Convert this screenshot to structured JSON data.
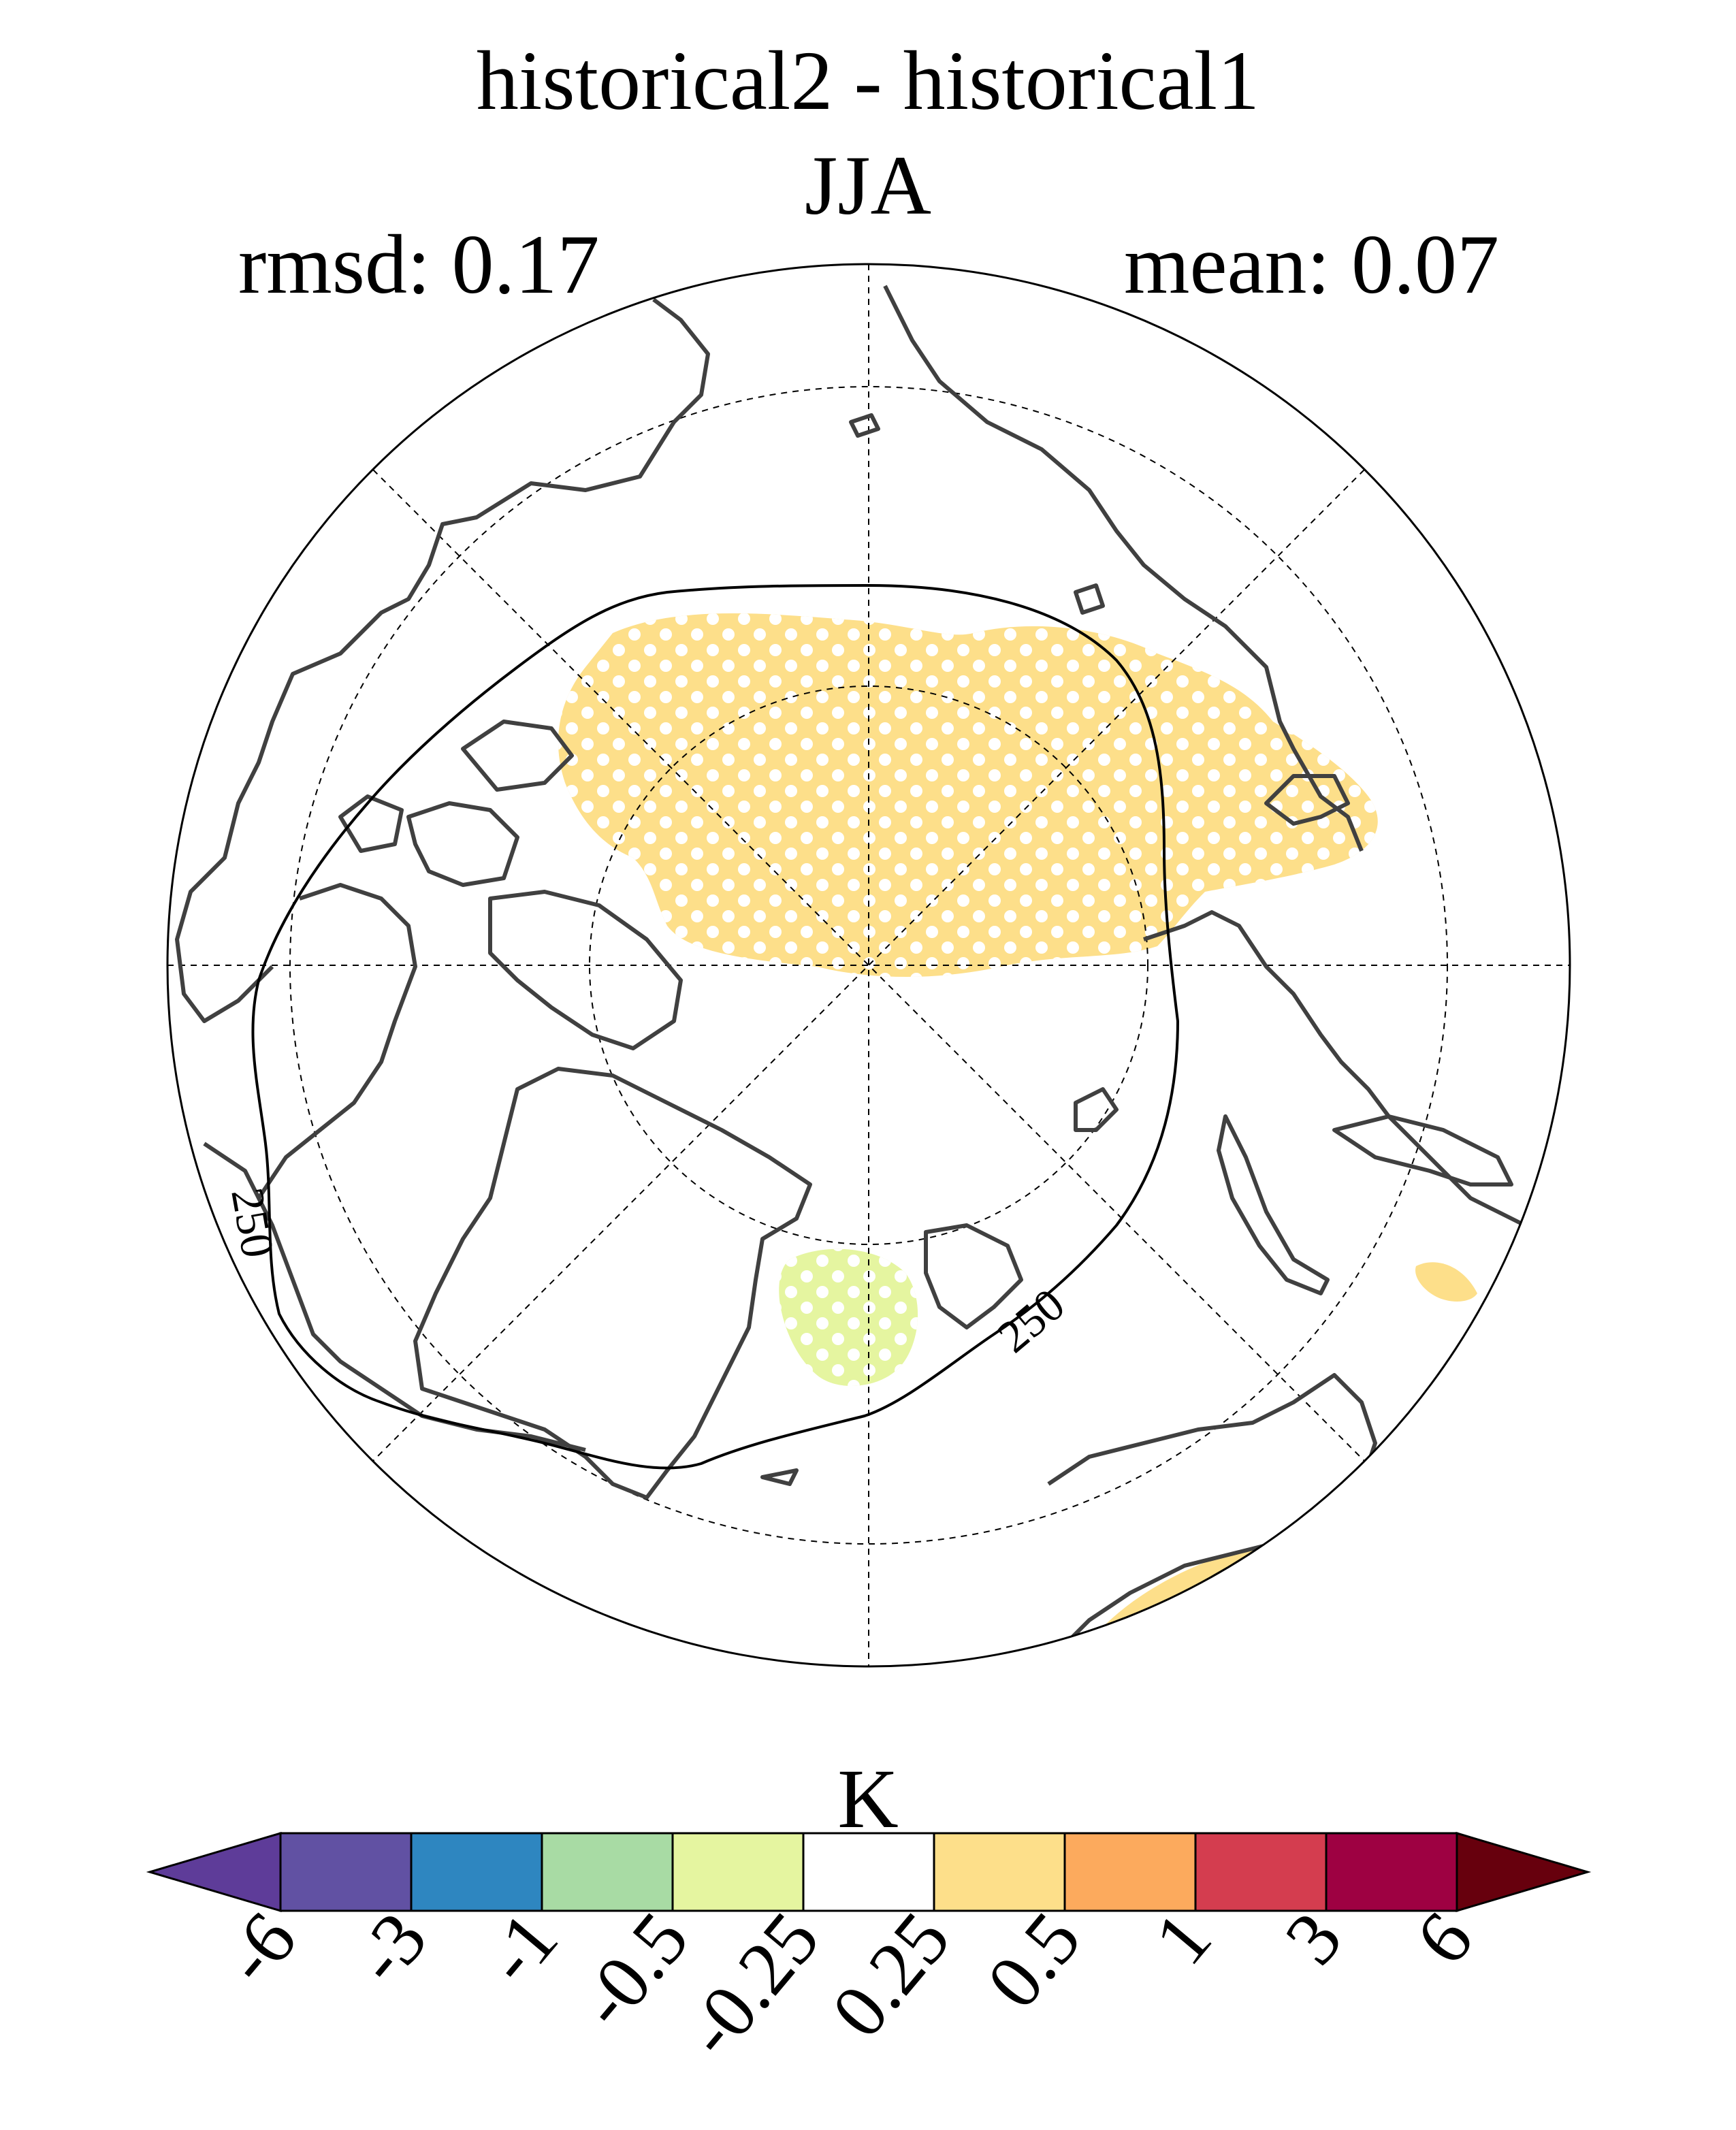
{
  "title": {
    "line1": "historical2 - historical1",
    "line2": "JJA"
  },
  "stats": {
    "rmsd_label": "rmsd: 0.17",
    "mean_label": "mean: 0.07"
  },
  "map": {
    "projection": "north-polar-stereographic",
    "contour_label": "250",
    "contour_label_2": "250",
    "shaded_regions": [
      {
        "name": "arctic-ocean-warming",
        "bin": "0.25 to 0.5",
        "stippled": true
      },
      {
        "name": "greenland-sea-cooling",
        "bin": "-0.5 to -0.25",
        "stippled": true
      },
      {
        "name": "siberia-small-warming",
        "bin": "0.25 to 0.5",
        "stippled": false
      },
      {
        "name": "europe-edge-warming",
        "bin": "0.25 to 0.5",
        "stippled": false
      }
    ]
  },
  "colorbar": {
    "units": "K",
    "ticks": [
      "-6",
      "-3",
      "-1",
      "-0.5",
      "-0.25",
      "0.25",
      "0.5",
      "1",
      "3",
      "6"
    ],
    "colors": [
      "#5e3c99",
      "#6151a3",
      "#2e86c0",
      "#a8dba4",
      "#e5f5a0",
      "#ffffff",
      "#fddf8a",
      "#fcaa5d",
      "#d43d4f",
      "#9e0142",
      "#67000d"
    ]
  }
}
